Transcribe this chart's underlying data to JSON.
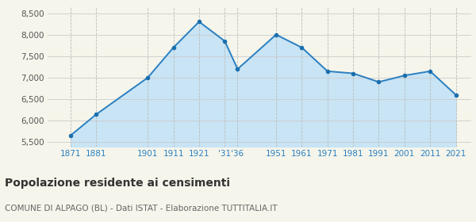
{
  "years": [
    1871,
    1881,
    1901,
    1911,
    1921,
    1931,
    1936,
    1951,
    1961,
    1971,
    1981,
    1991,
    2001,
    2011,
    2021
  ],
  "population": [
    5660,
    6150,
    7000,
    7700,
    8300,
    7850,
    7200,
    8000,
    7700,
    7150,
    7100,
    6900,
    7050,
    7150,
    6600
  ],
  "line_color": "#2a7fc1",
  "fill_color": "#c8e4f5",
  "marker_color": "#1a6fad",
  "bg_color": "#f5f5eb",
  "grid_color_h": "#cccccc",
  "grid_color_v": "#bbbbbb",
  "ylim_bottom": 5400,
  "ylim_top": 8650,
  "yticks": [
    5500,
    6000,
    6500,
    7000,
    7500,
    8000,
    8500
  ],
  "x_tick_positions": [
    1871,
    1881,
    1901,
    1911,
    1921,
    1931,
    1936,
    1951,
    1961,
    1971,
    1981,
    1991,
    2001,
    2011,
    2021
  ],
  "x_tick_labels": [
    "1871",
    "1881",
    "1901",
    "1911",
    "1921",
    "'31",
    "'36",
    "1951",
    "1961",
    "1971",
    "1981",
    "1991",
    "2001",
    "2011",
    "2021"
  ],
  "title": "Popolazione residente ai censimenti",
  "subtitle": "COMUNE DI ALPAGO (BL) - Dati ISTAT - Elaborazione TUTTITALIA.IT",
  "title_color": "#333333",
  "subtitle_color": "#666666",
  "xlabel_color": "#2a7fc1",
  "ylabel_color": "#555555",
  "xlim_left": 1862,
  "xlim_right": 2027
}
